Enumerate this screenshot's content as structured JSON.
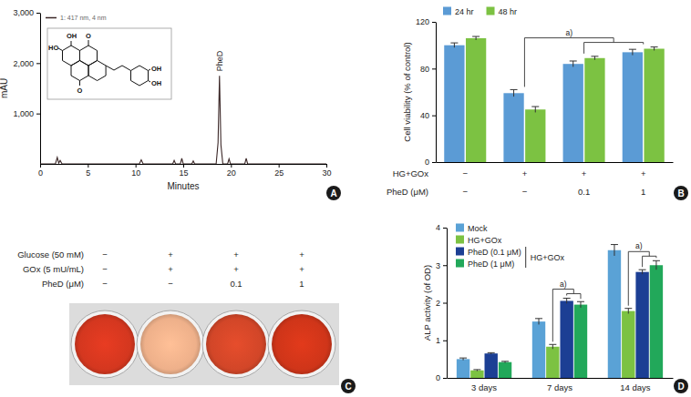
{
  "chart_data": [
    {
      "type": "line",
      "panel_label": "A",
      "x_label": "Minutes",
      "y_label": "mAU",
      "series": [
        {
          "name": "1: 417 nm, 4 nm",
          "color": "#3a2626",
          "x": [
            0,
            1.6,
            1.8,
            1.95,
            2.1,
            2.3,
            2.5,
            10.4,
            10.6,
            10.8,
            13.9,
            14.05,
            14.2,
            14.7,
            14.85,
            15.0,
            15.9,
            16.05,
            16.2,
            18.45,
            18.65,
            18.8,
            18.95,
            19.15,
            19.65,
            19.8,
            19.95,
            21.45,
            21.6,
            21.75,
            30
          ],
          "values": [
            0,
            0,
            130,
            15,
            70,
            0,
            0,
            0,
            80,
            0,
            0,
            70,
            0,
            0,
            110,
            0,
            0,
            60,
            0,
            0,
            420,
            1750,
            380,
            0,
            0,
            100,
            0,
            0,
            110,
            0,
            0
          ]
        }
      ],
      "xlim": [
        0,
        30
      ],
      "xticks": [
        0,
        5,
        10,
        15,
        20,
        25,
        30
      ],
      "ylim": [
        0,
        3000
      ],
      "yticks": [
        {
          "value": 1000,
          "label": "1,000"
        },
        {
          "value": 2000,
          "label": "2,000"
        },
        {
          "value": 3000,
          "label": "3,000"
        }
      ],
      "annotations": [
        {
          "text": "PheD",
          "x": 18.8,
          "y": 1750
        }
      ],
      "inset_labels": [
        "HO",
        "OH",
        "O",
        "O",
        "OH",
        "OH"
      ],
      "legend": "top-left"
    },
    {
      "type": "bar",
      "panel_label": "B",
      "y_label": "Cell viability (% of control)",
      "categories": [
        null,
        null,
        null,
        null
      ],
      "series": [
        {
          "name": "24 hr",
          "color": "#5b9bd5",
          "values": [
            100,
            59,
            84,
            94
          ],
          "errors": [
            2,
            3,
            2.5,
            2.5
          ]
        },
        {
          "name": "48 hr",
          "color": "#7cc242",
          "values": [
            106,
            45,
            89,
            97
          ],
          "errors": [
            1.5,
            2.5,
            1.5,
            1.5
          ]
        }
      ],
      "ylim": [
        0,
        120
      ],
      "yticks": [
        0,
        40,
        80,
        120
      ],
      "conditions": [
        {
          "label": "HG+GOx",
          "values": [
            "−",
            "+",
            "+",
            "+"
          ]
        },
        {
          "label": "PheD (μM)",
          "values": [
            "−",
            "−",
            "0.1",
            "1"
          ]
        }
      ],
      "annotations": [
        {
          "text": "a)"
        }
      ],
      "legend": "top-left"
    },
    {
      "type": "image",
      "panel_label": "C",
      "conditions": [
        {
          "label": "Glucose (50 mM)",
          "values": [
            "−",
            "+",
            "+",
            "+"
          ]
        },
        {
          "label": "GOx (5 mU/mL)",
          "values": [
            "−",
            "+",
            "+",
            "+"
          ]
        },
        {
          "label": "PheD (μM)",
          "values": [
            "−",
            "−",
            "0.1",
            "1"
          ]
        }
      ],
      "colors": [
        "#d4371f",
        "#eeb08a",
        "#d24628",
        "#cf3519"
      ]
    },
    {
      "type": "bar",
      "panel_label": "D",
      "y_label": "ALP activity (of OD)",
      "categories": [
        "3 days",
        "7 days",
        "14 days"
      ],
      "series": [
        {
          "name": "Mock",
          "color": "#5aa2d6",
          "values": [
            0.5,
            1.5,
            3.4
          ],
          "errors": [
            0.03,
            0.08,
            0.15
          ]
        },
        {
          "name": "HG+GOx",
          "color": "#7cc242",
          "values": [
            0.2,
            0.83,
            1.78
          ],
          "errors": [
            0.02,
            0.06,
            0.07
          ]
        },
        {
          "name": "PheD (0.1 μM)",
          "color": "#1c3f94",
          "values": [
            0.65,
            2.05,
            2.82
          ],
          "errors": [
            0.02,
            0.07,
            0.06
          ]
        },
        {
          "name": "PheD (1 μM)",
          "color": "#22a85a",
          "values": [
            0.42,
            1.95,
            3.0
          ],
          "errors": [
            0.02,
            0.08,
            0.12
          ]
        }
      ],
      "legend_group": "HG+GOx",
      "ylim": [
        0,
        4
      ],
      "yticks": [
        0,
        1,
        2,
        3,
        4
      ],
      "annotations": [
        {
          "text": "a)",
          "category": "7 days"
        },
        {
          "text": "a)",
          "category": "14 days"
        }
      ],
      "legend": "top-left"
    }
  ]
}
